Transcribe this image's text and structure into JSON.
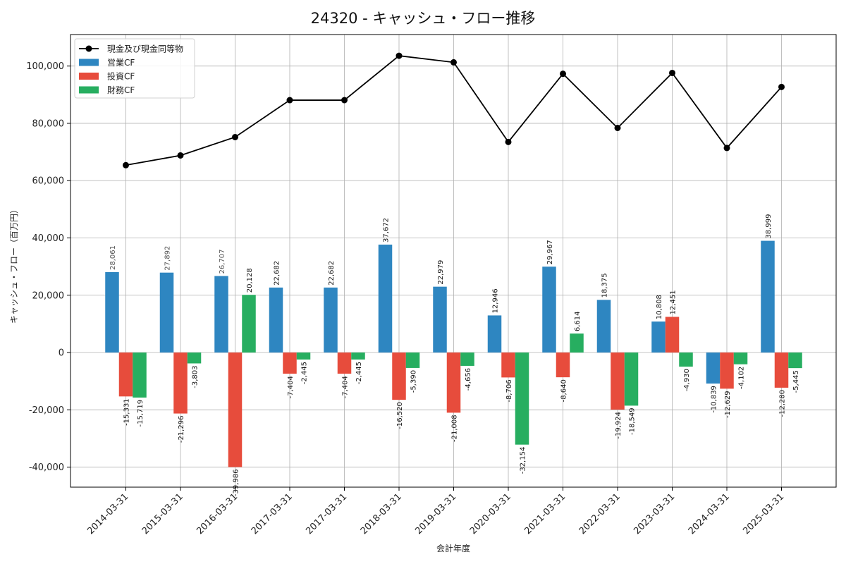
{
  "chart_data": {
    "type": "bar",
    "title": "24320 - キャッシュ・フロー推移",
    "xlabel": "会計年度",
    "ylabel": "キャッシュ・フロー（百万円）",
    "ylim": [
      -47000,
      111000
    ],
    "yticks": [
      -40000,
      -20000,
      0,
      20000,
      40000,
      60000,
      80000,
      100000
    ],
    "ytick_labels": [
      "-40,000",
      "-20,000",
      "0",
      "20,000",
      "40,000",
      "60,000",
      "80,000",
      "100,000"
    ],
    "grid": true,
    "legend_position": "top-left",
    "categories": [
      "2014-03-31",
      "2015-03-31",
      "2016-03-31",
      "2017-03-31",
      "2017-03-31",
      "2018-03-31",
      "2019-03-31",
      "2020-03-31",
      "2021-03-31",
      "2022-03-31",
      "2023-03-31",
      "2024-03-31",
      "2025-03-31"
    ],
    "series": [
      {
        "name": "営業CF",
        "kind": "bar",
        "color": "#2e86c1",
        "values": [
          28061,
          27892,
          26707,
          22682,
          22682,
          37672,
          22979,
          12946,
          29967,
          18375,
          10808,
          -10839,
          38999
        ],
        "labels": [
          "28,061",
          "27,892",
          "26,707",
          "22,682",
          "22,682",
          "37,672",
          "22,979",
          "12,946",
          "29,967",
          "18,375",
          "10,808",
          "-10,839",
          "38,999"
        ]
      },
      {
        "name": "投資CF",
        "kind": "bar",
        "color": "#e74c3c",
        "values": [
          -15331,
          -21296,
          -39986,
          -7404,
          -7404,
          -16520,
          -21008,
          -8706,
          -8640,
          -19924,
          12451,
          -12629,
          -12280
        ],
        "labels": [
          "-15,331",
          "-21,296",
          "-39,986",
          "-7,404",
          "-7,404",
          "-16,520",
          "-21,008",
          "-8,706",
          "-8,640",
          "-19,924",
          "12,451",
          "-12,629",
          "-12,280"
        ]
      },
      {
        "name": "財務CF",
        "kind": "bar",
        "color": "#27ae60",
        "values": [
          -15719,
          -3803,
          20128,
          -2445,
          -2445,
          -5390,
          -4656,
          -32154,
          6614,
          -18549,
          -4930,
          -4102,
          -5445
        ],
        "labels": [
          "-15,719",
          "-3,803",
          "20,128",
          "-2,445",
          "-2,445",
          "-5,390",
          "-4,656",
          "-32,154",
          "6,614",
          "-18,549",
          "-4,930",
          "-4,102",
          "-5,445"
        ]
      },
      {
        "name": "現金及び現金同等物",
        "kind": "line",
        "color": "#000000",
        "values": [
          65400,
          68800,
          75200,
          88100,
          88100,
          103600,
          101300,
          73500,
          97300,
          78400,
          97600,
          71400,
          92700
        ]
      }
    ]
  }
}
